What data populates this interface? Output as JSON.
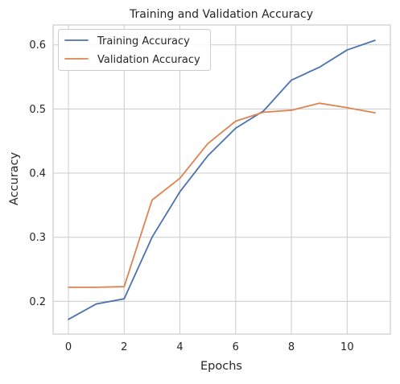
{
  "chart_data": {
    "type": "line",
    "title": "Training and Validation Accuracy",
    "xlabel": "Epochs",
    "ylabel": "Accuracy",
    "xlim": [
      -0.55,
      11.55
    ],
    "ylim": [
      0.149,
      0.631
    ],
    "xticks": [
      0,
      2,
      4,
      6,
      8,
      10
    ],
    "yticks": [
      0.2,
      0.3,
      0.4,
      0.5,
      0.6
    ],
    "grid": true,
    "legend_position": "upper-left",
    "x": [
      0,
      1,
      2,
      3,
      4,
      5,
      6,
      7,
      8,
      9,
      10,
      11
    ],
    "series": [
      {
        "name": "Training Accuracy",
        "color": "#4c72b0",
        "values": [
          0.172,
          0.196,
          0.204,
          0.3,
          0.371,
          0.427,
          0.47,
          0.497,
          0.545,
          0.565,
          0.592,
          0.607
        ]
      },
      {
        "name": "Validation Accuracy",
        "color": "#dd8452",
        "values": [
          0.222,
          0.222,
          0.223,
          0.358,
          0.392,
          0.446,
          0.481,
          0.495,
          0.498,
          0.509,
          0.502,
          0.494
        ]
      }
    ]
  }
}
